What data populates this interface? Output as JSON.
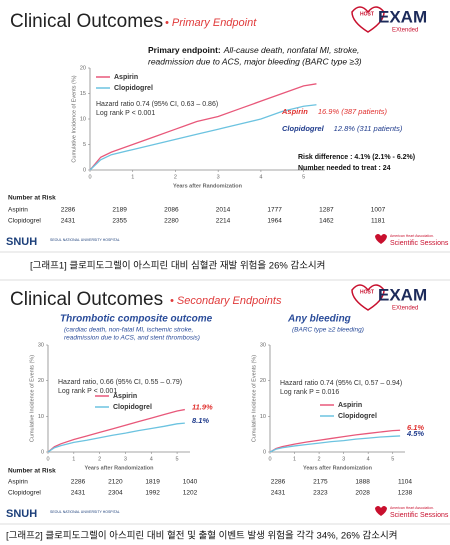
{
  "slides": [
    {
      "title": "Clinical Outcomes",
      "subtitle": "• Primary Endpoint",
      "logo_host": "HOST",
      "logo": "EXAM",
      "logo_sub": "EXtended",
      "footer_left": "SNUH",
      "footer_left_sub": "SEOUL NATIONAL UNIVERSITY HOSPITAL",
      "footer_right_sub": "American Heart Association.",
      "footer_right": "Scientific Sessions",
      "caption": "[그래프1] 클로피도그렐이 아스피린 대비 심혈관 재발 위험을 26% 감소시켜"
    },
    {
      "title": "Clinical Outcomes",
      "subtitle": "• Secondary Endpoints",
      "logo_host": "HOST",
      "logo": "EXAM",
      "logo_sub": "EXtended",
      "footer_left": "SNUH",
      "footer_left_sub": "SEOUL NATIONAL UNIVERSITY HOSPITAL",
      "footer_right_sub": "American Heart Association.",
      "footer_right": "Scientific Sessions",
      "caption": "[그래프2] 클로피도그렐이 아스피린 대비 혈전 및 출혈 이벤트 발생 위험을 각각 34%, 26% 감소시켜"
    }
  ],
  "chart_data": [
    {
      "type": "line",
      "title_label": "Primary endpoint:",
      "title_lines": [
        "All-cause death, nonfatal MI, stroke,",
        "readmission due to ACS, major bleeding (BARC type ≥3)"
      ],
      "ylabel": "Cumulative Incidence of Events (%)",
      "xlabel": "Years after Randomization",
      "x": [
        0,
        0.25,
        0.5,
        1,
        1.5,
        2,
        2.5,
        3,
        3.5,
        4,
        4.5,
        5,
        5.3
      ],
      "xlim": [
        0,
        5.5
      ],
      "xticks": [
        0,
        1,
        2,
        3,
        4,
        5
      ],
      "ylim": [
        0,
        20
      ],
      "yticks": [
        0,
        5,
        10,
        15,
        20
      ],
      "series": [
        {
          "name": "Aspirin",
          "color": "#e8587a",
          "values": [
            0,
            2.5,
            3.5,
            5,
            6.5,
            8,
            9.5,
            10.5,
            12,
            13.5,
            15,
            16.5,
            16.9
          ]
        },
        {
          "name": "Clopidogrel",
          "color": "#6cc3e0",
          "values": [
            0,
            2,
            3,
            4,
            5,
            6,
            7,
            8,
            9,
            10,
            11.5,
            12.5,
            12.8
          ]
        }
      ],
      "annotations": [
        "Hazard ratio 0.74 (95% CI, 0.63 – 0.86)",
        "Log rank P < 0.001"
      ],
      "end_labels": [
        {
          "name": "Aspirin",
          "text": "16.9% (387 patients)"
        },
        {
          "name": "Clopidogrel",
          "text": "12.8% (311 patients)"
        }
      ],
      "stats": [
        "Risk difference : 4.1% (2.1% - 6.2%)",
        "Number needed to treat : 24"
      ],
      "risk_table": {
        "header": "Number at Risk",
        "rows": [
          {
            "name": "Aspirin",
            "counts": [
              2286,
              2189,
              2086,
              2014,
              1777,
              1287,
              1007
            ]
          },
          {
            "name": "Clopidogrel",
            "counts": [
              2431,
              2355,
              2280,
              2214,
              1964,
              1462,
              1181
            ]
          }
        ]
      }
    },
    {
      "type": "line",
      "title": "Thrombotic composite outcome",
      "subtitle_lines": [
        "(cardiac death, non-fatal MI, ischemic stroke,",
        "readmission due to ACS, and stent thrombosis)"
      ],
      "ylabel": "Cumulative Incidence of Events (%)",
      "xlabel": "Years after Randomization",
      "x": [
        0,
        0.25,
        0.5,
        1,
        1.5,
        2,
        2.5,
        3,
        3.5,
        4,
        4.5,
        5,
        5.3
      ],
      "xlim": [
        0,
        5.5
      ],
      "xticks": [
        0,
        1,
        2,
        3,
        4,
        5
      ],
      "ylim": [
        0,
        30
      ],
      "yticks": [
        0,
        10,
        20,
        30
      ],
      "series": [
        {
          "name": "Aspirin",
          "color": "#e8587a",
          "values": [
            0,
            1.5,
            2.3,
            3.5,
            4.5,
            5.5,
            6.5,
            7.5,
            8.5,
            9.5,
            10.5,
            11.5,
            11.9
          ]
        },
        {
          "name": "Clopidogrel",
          "color": "#6cc3e0",
          "values": [
            0,
            1.2,
            1.8,
            2.7,
            3.3,
            4,
            4.7,
            5.3,
            6,
            6.6,
            7.2,
            7.9,
            8.1
          ]
        }
      ],
      "annotations": [
        "Hazard ratio, 0.66 (95% CI, 0.55 – 0.79)",
        "Log rank P < 0.001"
      ],
      "end_labels": [
        {
          "text": "11.9%"
        },
        {
          "text": "8.1%"
        }
      ],
      "risk_table": {
        "header": "Number at Risk",
        "rows": [
          {
            "name": "Aspirin",
            "counts": [
              2286,
              2120,
              1819,
              1040
            ]
          },
          {
            "name": "Clopidogrel",
            "counts": [
              2431,
              2304,
              1992,
              1202
            ]
          }
        ]
      }
    },
    {
      "type": "line",
      "title": "Any bleeding",
      "subtitle_lines": [
        "(BARC type ≥2 bleeding)"
      ],
      "ylabel": "Cumulative Incidence of Events (%)",
      "xlabel": "Years after Randomization",
      "x": [
        0,
        0.25,
        0.5,
        1,
        1.5,
        2,
        2.5,
        3,
        3.5,
        4,
        4.5,
        5,
        5.3
      ],
      "xlim": [
        0,
        5.5
      ],
      "xticks": [
        0,
        1,
        2,
        3,
        4,
        5
      ],
      "ylim": [
        0,
        30
      ],
      "yticks": [
        0,
        10,
        20,
        30
      ],
      "series": [
        {
          "name": "Aspirin",
          "color": "#e8587a",
          "values": [
            0,
            1,
            1.5,
            2.2,
            2.8,
            3.3,
            3.8,
            4.3,
            4.8,
            5.2,
            5.6,
            6,
            6.1
          ]
        },
        {
          "name": "Clopidogrel",
          "color": "#6cc3e0",
          "values": [
            0,
            0.8,
            1.2,
            1.7,
            2.1,
            2.5,
            2.9,
            3.2,
            3.6,
            3.9,
            4.2,
            4.4,
            4.5
          ]
        }
      ],
      "annotations": [
        "Hazard ratio 0.74 (95% CI, 0.57 – 0.94)",
        "Log rank P = 0.016"
      ],
      "end_labels": [
        {
          "text": "6.1%"
        },
        {
          "text": "4.5%"
        }
      ],
      "risk_table": {
        "rows": [
          {
            "counts": [
              2286,
              2175,
              1888,
              1104
            ]
          },
          {
            "counts": [
              2431,
              2323,
              2028,
              1238
            ]
          }
        ]
      }
    }
  ]
}
